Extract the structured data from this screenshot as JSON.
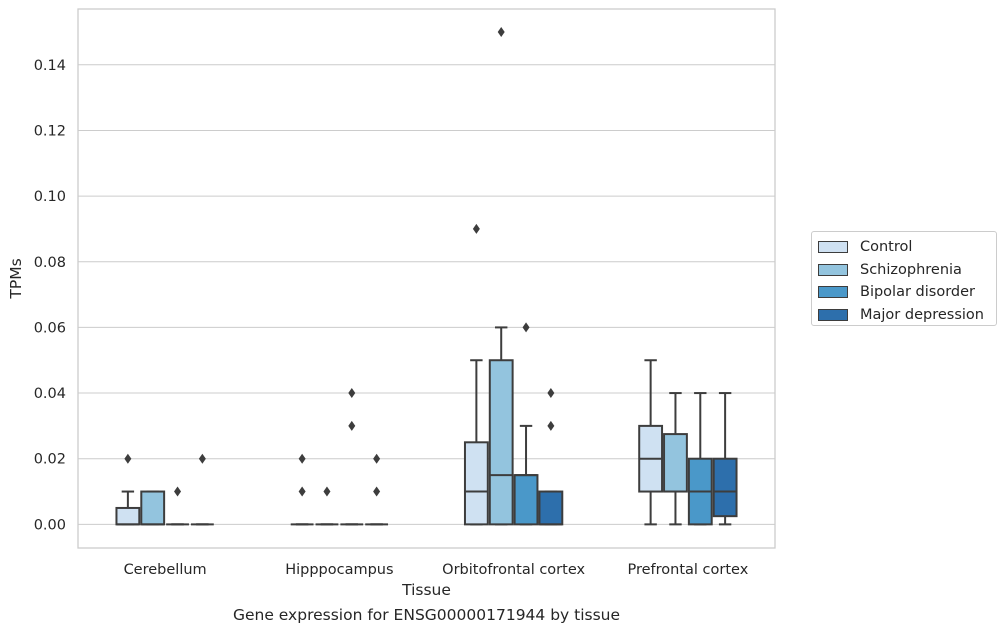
{
  "caption": "Gene expression for ENSG00000171944 by tissue",
  "chart_data": {
    "type": "box",
    "xlabel": "Tissue",
    "ylabel": "TPMs",
    "ylim": [
      -0.0072,
      0.157
    ],
    "yticks": [
      0.0,
      0.02,
      0.04,
      0.06,
      0.08,
      0.1,
      0.12,
      0.14
    ],
    "ytick_labels": [
      "0.00",
      "0.02",
      "0.04",
      "0.06",
      "0.08",
      "0.10",
      "0.12",
      "0.14"
    ],
    "grid": "horizontal",
    "legend_placement": "right",
    "categories": [
      "Cerebellum",
      "Hipppocampus",
      "Orbitofrontal cortex",
      "Prefrontal cortex"
    ],
    "series": [
      {
        "name": "Control",
        "color": "#cfe1f2",
        "boxes": [
          {
            "whisker_low": 0,
            "q1": 0,
            "median": 0,
            "q3": 0.005,
            "whisker_high": 0.01,
            "outliers": [
              0.02
            ]
          },
          {
            "whisker_low": 0,
            "q1": 0,
            "median": 0,
            "q3": 0,
            "whisker_high": 0,
            "outliers": [
              0.01,
              0.02
            ]
          },
          {
            "whisker_low": 0,
            "q1": 0,
            "median": 0.01,
            "q3": 0.025,
            "whisker_high": 0.05,
            "outliers": [
              0.09
            ]
          },
          {
            "whisker_low": 0,
            "q1": 0.01,
            "median": 0.02,
            "q3": 0.03,
            "whisker_high": 0.05,
            "outliers": []
          }
        ]
      },
      {
        "name": "Schizophrenia",
        "color": "#93c4de",
        "boxes": [
          {
            "whisker_low": 0,
            "q1": 0,
            "median": 0,
            "q3": 0.01,
            "whisker_high": 0.01,
            "outliers": []
          },
          {
            "whisker_low": 0,
            "q1": 0,
            "median": 0,
            "q3": 0,
            "whisker_high": 0,
            "outliers": [
              0.01
            ]
          },
          {
            "whisker_low": 0,
            "q1": 0,
            "median": 0.015,
            "q3": 0.05,
            "whisker_high": 0.06,
            "outliers": [
              0.15
            ]
          },
          {
            "whisker_low": 0,
            "q1": 0.01,
            "median": 0.01,
            "q3": 0.0275,
            "whisker_high": 0.04,
            "outliers": []
          }
        ]
      },
      {
        "name": "Bipolar disorder",
        "color": "#4a98c9",
        "boxes": [
          {
            "whisker_low": 0,
            "q1": 0,
            "median": 0,
            "q3": 0,
            "whisker_high": 0,
            "outliers": [
              0.01
            ]
          },
          {
            "whisker_low": 0,
            "q1": 0,
            "median": 0,
            "q3": 0,
            "whisker_high": 0,
            "outliers": [
              0.03,
              0.04
            ]
          },
          {
            "whisker_low": 0,
            "q1": 0,
            "median": 0.015,
            "q3": 0.015,
            "whisker_high": 0.03,
            "outliers": [
              0.06
            ]
          },
          {
            "whisker_low": 0,
            "q1": 0,
            "median": 0.01,
            "q3": 0.02,
            "whisker_high": 0.04,
            "outliers": []
          }
        ]
      },
      {
        "name": "Major depression",
        "color": "#2d6fac",
        "boxes": [
          {
            "whisker_low": 0,
            "q1": 0,
            "median": 0,
            "q3": 0,
            "whisker_high": 0,
            "outliers": [
              0.02
            ]
          },
          {
            "whisker_low": 0,
            "q1": 0,
            "median": 0,
            "q3": 0,
            "whisker_high": 0,
            "outliers": [
              0.01,
              0.02
            ]
          },
          {
            "whisker_low": 0,
            "q1": 0,
            "median": 0,
            "q3": 0.01,
            "whisker_high": 0.01,
            "outliers": [
              0.03,
              0.04
            ]
          },
          {
            "whisker_low": 0,
            "q1": 0.0025,
            "median": 0.01,
            "q3": 0.02,
            "whisker_high": 0.04,
            "outliers": []
          }
        ]
      }
    ]
  }
}
